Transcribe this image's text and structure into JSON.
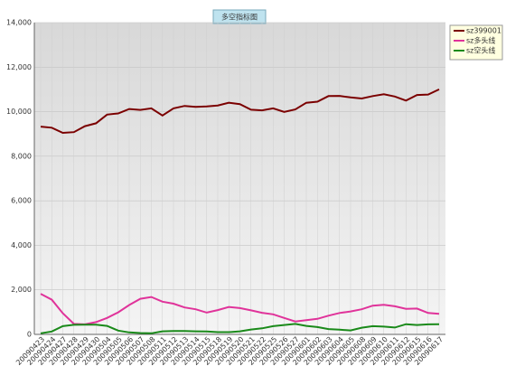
{
  "chart_data": {
    "type": "line",
    "title": "多空指标图",
    "categories": [
      "20090423",
      "20090424",
      "20090427",
      "20090428",
      "20090429",
      "20090430",
      "20090504",
      "20090505",
      "20090506",
      "20090507",
      "20090508",
      "20090511",
      "20090512",
      "20090513",
      "20090514",
      "20090515",
      "20090518",
      "20090519",
      "20090520",
      "20090521",
      "20090522",
      "20090525",
      "20090526",
      "20090527",
      "20090601",
      "20090602",
      "20090603",
      "20090604",
      "20090605",
      "20090608",
      "20090609",
      "20090610",
      "20090611",
      "20090612",
      "20090615",
      "20090616",
      "20090617"
    ],
    "series": [
      {
        "name": "sz399001",
        "color": "#7b0000",
        "values": [
          9330,
          9280,
          9050,
          9080,
          9350,
          9480,
          9870,
          9920,
          10120,
          10080,
          10150,
          9830,
          10150,
          10260,
          10220,
          10240,
          10280,
          10400,
          10340,
          10090,
          10060,
          10150,
          9990,
          10100,
          10400,
          10450,
          10700,
          10710,
          10640,
          10590,
          10700,
          10780,
          10680,
          10500,
          10750,
          10770,
          11000
        ]
      },
      {
        "name": "sz多头线",
        "color": "#e0339a",
        "values": [
          1820,
          1560,
          950,
          470,
          450,
          550,
          740,
          990,
          1320,
          1600,
          1680,
          1470,
          1380,
          1210,
          1130,
          980,
          1090,
          1230,
          1180,
          1080,
          970,
          900,
          740,
          580,
          640,
          700,
          840,
          960,
          1030,
          1130,
          1290,
          1330,
          1260,
          1150,
          1160,
          960,
          920
        ]
      },
      {
        "name": "sz空头线",
        "color": "#1a8a1a",
        "values": [
          50,
          130,
          370,
          430,
          440,
          440,
          380,
          170,
          90,
          60,
          50,
          140,
          150,
          150,
          140,
          130,
          100,
          100,
          140,
          220,
          270,
          370,
          420,
          470,
          380,
          330,
          240,
          210,
          180,
          300,
          370,
          350,
          310,
          460,
          420,
          450,
          460
        ]
      }
    ],
    "ylim": [
      0,
      14000
    ],
    "yticks": [
      {
        "value": 0,
        "label": "0"
      },
      {
        "value": 2000,
        "label": "2,000"
      },
      {
        "value": 4000,
        "label": "4,000"
      },
      {
        "value": 6000,
        "label": "6,000"
      },
      {
        "value": 8000,
        "label": "8,000"
      },
      {
        "value": 10000,
        "label": "10,000"
      },
      {
        "value": 12000,
        "label": "12,000"
      },
      {
        "value": 14000,
        "label": "14,000"
      }
    ],
    "grid": true
  }
}
